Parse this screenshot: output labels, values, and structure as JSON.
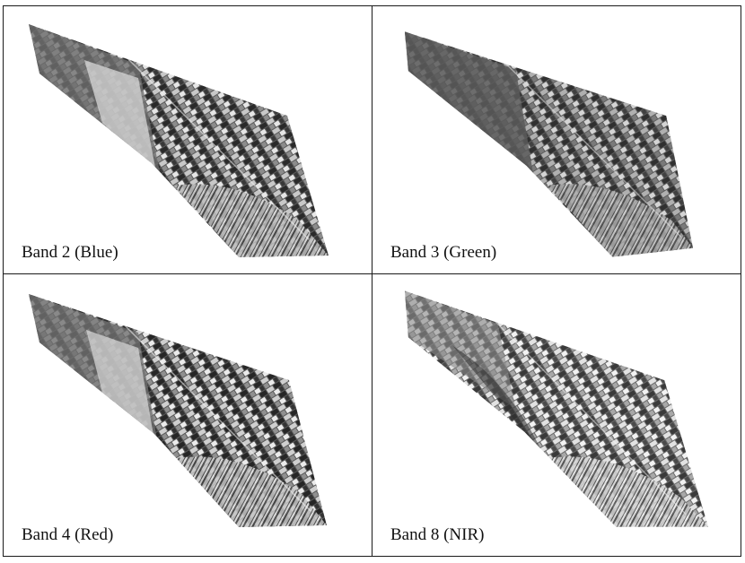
{
  "panels": [
    {
      "label": "Band 2 (Blue)",
      "variant": "blue"
    },
    {
      "label": "Band 3 (Green)",
      "variant": "green"
    },
    {
      "label": "Band 4 (Red)",
      "variant": "red"
    },
    {
      "label": "Band 8 (NIR)",
      "variant": "nir"
    }
  ]
}
